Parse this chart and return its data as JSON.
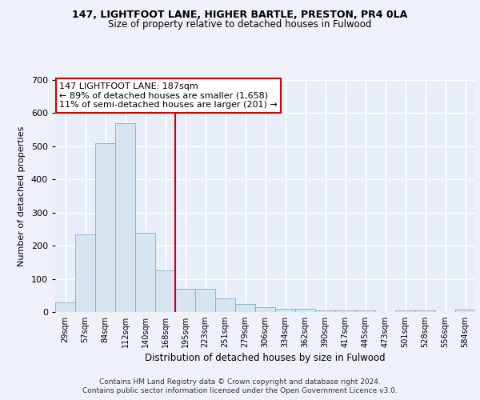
{
  "title1": "147, LIGHTFOOT LANE, HIGHER BARTLE, PRESTON, PR4 0LA",
  "title2": "Size of property relative to detached houses in Fulwood",
  "xlabel": "Distribution of detached houses by size in Fulwood",
  "ylabel": "Number of detached properties",
  "bins": [
    "29sqm",
    "57sqm",
    "84sqm",
    "112sqm",
    "140sqm",
    "168sqm",
    "195sqm",
    "223sqm",
    "251sqm",
    "279sqm",
    "306sqm",
    "334sqm",
    "362sqm",
    "390sqm",
    "417sqm",
    "445sqm",
    "473sqm",
    "501sqm",
    "528sqm",
    "556sqm",
    "584sqm"
  ],
  "bar_heights": [
    28,
    235,
    510,
    570,
    240,
    125,
    70,
    70,
    40,
    25,
    14,
    10,
    10,
    5,
    5,
    5,
    0,
    5,
    5,
    0,
    8
  ],
  "bar_color": "#d6e4f0",
  "bar_edge_color": "#7bafd4",
  "vline_x": 6.0,
  "vline_color": "#cc0000",
  "annotation_text": "147 LIGHTFOOT LANE: 187sqm\n← 89% of detached houses are smaller (1,658)\n11% of semi-detached houses are larger (201) →",
  "annotation_box_color": "#ffffff",
  "annotation_box_edge": "#cc0000",
  "ylim": [
    0,
    700
  ],
  "yticks": [
    0,
    100,
    200,
    300,
    400,
    500,
    600,
    700
  ],
  "footer1": "Contains HM Land Registry data © Crown copyright and database right 2024.",
  "footer2": "Contains public sector information licensed under the Open Government Licence v3.0.",
  "bg_color": "#eef2f8",
  "plot_bg_color": "#e8eef8",
  "grid_color": "#ffffff"
}
